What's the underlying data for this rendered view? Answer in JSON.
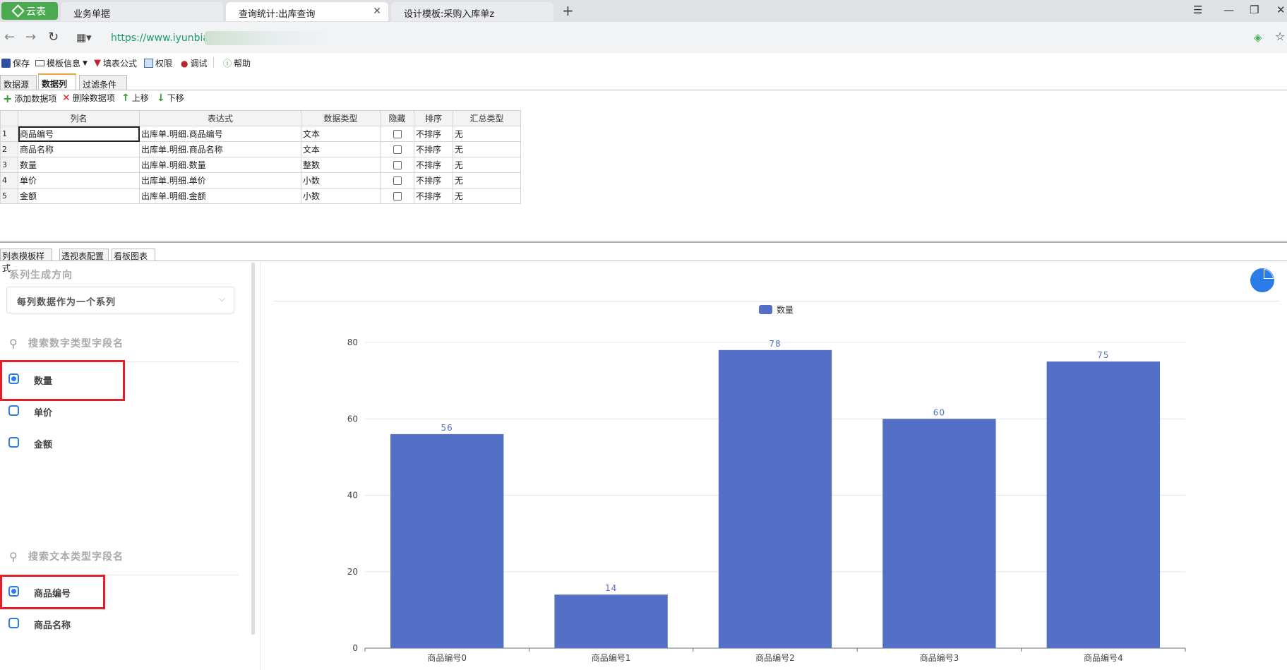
{
  "browser": {
    "brand": "云表",
    "tabs": [
      {
        "label": "业务单据",
        "active": false
      },
      {
        "label": "查询统计:出库查询",
        "active": true
      },
      {
        "label": "设计模板:采购入库单z",
        "active": false
      }
    ],
    "url": "https://www.iyunbiao.c"
  },
  "toolbar": {
    "save": "保存",
    "template_info": "模板信息",
    "fill_formula": "填表公式",
    "permission": "权限",
    "debug": "调试",
    "help": "帮助"
  },
  "upper_tabs": [
    "数据源",
    "数据列",
    "过滤条件"
  ],
  "column_toolbar": {
    "add": "添加数据项",
    "delete": "删除数据项",
    "up": "上移",
    "down": "下移"
  },
  "grid": {
    "headers": [
      "列名",
      "表达式",
      "数据类型",
      "隐藏",
      "排序",
      "汇总类型"
    ],
    "rows": [
      {
        "n": "1",
        "name": "商品编号",
        "expr": "出库单.明细.商品编号",
        "type": "文本",
        "sort": "不排序",
        "agg": "无"
      },
      {
        "n": "2",
        "name": "商品名称",
        "expr": "出库单.明细.商品名称",
        "type": "文本",
        "sort": "不排序",
        "agg": "无"
      },
      {
        "n": "3",
        "name": "数量",
        "expr": "出库单.明细.数量",
        "type": "整数",
        "sort": "不排序",
        "agg": "无"
      },
      {
        "n": "4",
        "name": "单价",
        "expr": "出库单.明细.单价",
        "type": "小数",
        "sort": "不排序",
        "agg": "无"
      },
      {
        "n": "5",
        "name": "金额",
        "expr": "出库单.明细.金额",
        "type": "小数",
        "sort": "不排序",
        "agg": "无"
      }
    ]
  },
  "lower_tabs": [
    "列表模板样式",
    "透视表配置",
    "看板图表"
  ],
  "left_panel": {
    "series_direction_label": "系列生成方向",
    "series_direction_value": "每列数据作为一个系列",
    "numeric_search_placeholder": "搜索数字类型字段名",
    "numeric_fields": [
      {
        "label": "数量",
        "checked": true
      },
      {
        "label": "单价",
        "checked": false
      },
      {
        "label": "金额",
        "checked": false
      }
    ],
    "text_search_placeholder": "搜索文本类型字段名",
    "text_fields": [
      {
        "label": "商品编号",
        "checked": true
      },
      {
        "label": "商品名称",
        "checked": false
      }
    ]
  },
  "colors": {
    "bar": "#5470c6",
    "accent": "#2b7ce9",
    "highlight": "#e0202a",
    "brand": "#4aaa4f"
  },
  "chart_data": {
    "type": "bar",
    "categories": [
      "商品编号0",
      "商品编号1",
      "商品编号2",
      "商品编号3",
      "商品编号4"
    ],
    "series": [
      {
        "name": "数量",
        "values": [
          56,
          14,
          78,
          60,
          75
        ]
      }
    ],
    "ylim": [
      0,
      80
    ],
    "yticks": [
      0,
      20,
      40,
      60,
      80
    ],
    "legend": "top-center",
    "grid": true
  }
}
